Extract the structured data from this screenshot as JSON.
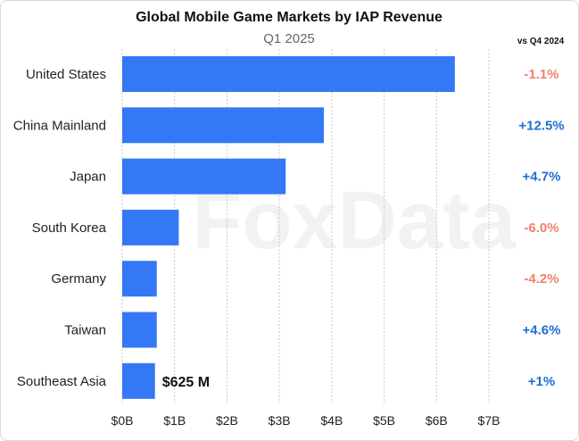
{
  "chart_data": {
    "type": "bar",
    "orientation": "horizontal",
    "title": "Global Mobile Game Markets by IAP Revenue",
    "subtitle": "Q1 2025",
    "watermark": "FoxData",
    "change_header": "vs Q4 2024",
    "categories": [
      "United States",
      "China Mainland",
      "Japan",
      "South Korea",
      "Germany",
      "Taiwan",
      "Southeast Asia"
    ],
    "values": [
      6.35,
      3.85,
      3.12,
      1.08,
      0.66,
      0.66,
      0.625
    ],
    "changes": [
      "-1.1%",
      "+12.5%",
      "+4.7%",
      "-6.0%",
      "-4.2%",
      "+4.6%",
      "+1%"
    ],
    "change_colors": [
      "#f0826a",
      "#1f6fd1",
      "#1f6fd1",
      "#f0826a",
      "#f0826a",
      "#1f6fd1",
      "#1f6fd1"
    ],
    "data_labels": [
      {
        "category": "Southeast Asia",
        "text": "$625 M"
      }
    ],
    "xticks": [
      "$0B",
      "$1B",
      "$2B",
      "$3B",
      "$4B",
      "$5B",
      "$6B",
      "$7B"
    ],
    "xlim": [
      0,
      7
    ],
    "unit": "billion USD",
    "bar_color": "#3478f6",
    "grid": "vertical dashed",
    "legend": "none"
  }
}
